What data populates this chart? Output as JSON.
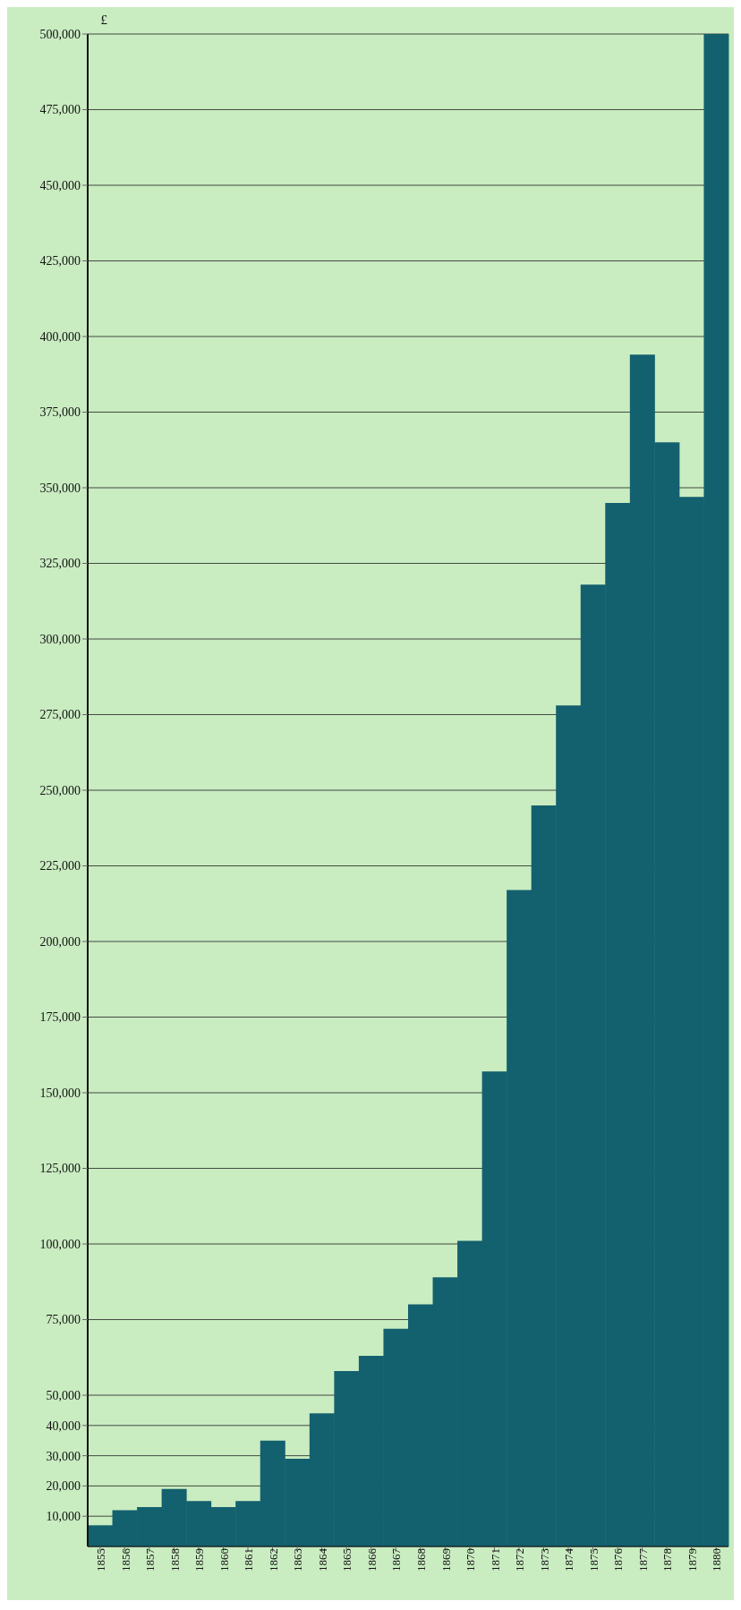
{
  "chart_data": {
    "type": "bar",
    "ylabel": "£",
    "categories": [
      "1855",
      "1856",
      "1857",
      "1858",
      "1859",
      "1860",
      "1861",
      "1862",
      "1863",
      "1864",
      "1865",
      "1866",
      "1867",
      "1868",
      "1869",
      "1870",
      "1871",
      "1872",
      "1873",
      "1874",
      "1875",
      "1876",
      "1877",
      "1878",
      "1879",
      "1880"
    ],
    "values": [
      7000,
      12000,
      13000,
      19000,
      15000,
      13000,
      15000,
      35000,
      29000,
      44000,
      58000,
      63000,
      72000,
      80000,
      89000,
      101000,
      157000,
      217000,
      245000,
      278000,
      318000,
      345000,
      394000,
      365000,
      347000,
      500000
    ],
    "color": "#13606e",
    "ylim": [
      0,
      500000
    ],
    "yticks": [
      {
        "value": 10000,
        "label": "10,000"
      },
      {
        "value": 20000,
        "label": "20,000"
      },
      {
        "value": 30000,
        "label": "30,000"
      },
      {
        "value": 40000,
        "label": "40,000"
      },
      {
        "value": 50000,
        "label": "50,000"
      },
      {
        "value": 75000,
        "label": "75,000"
      },
      {
        "value": 100000,
        "label": "100,000"
      },
      {
        "value": 125000,
        "label": "125,000"
      },
      {
        "value": 150000,
        "label": "150,000"
      },
      {
        "value": 175000,
        "label": "175,000"
      },
      {
        "value": 200000,
        "label": "200,000"
      },
      {
        "value": 225000,
        "label": "225,000"
      },
      {
        "value": 250000,
        "label": "250,000"
      },
      {
        "value": 275000,
        "label": "275,000"
      },
      {
        "value": 300000,
        "label": "300,000"
      },
      {
        "value": 325000,
        "label": "325,000"
      },
      {
        "value": 350000,
        "label": "350,000"
      },
      {
        "value": 375000,
        "label": "375,000"
      },
      {
        "value": 400000,
        "label": "400,000"
      },
      {
        "value": 425000,
        "label": "425,000"
      },
      {
        "value": 450000,
        "label": "450,000"
      },
      {
        "value": 475000,
        "label": "475,000"
      },
      {
        "value": 500000,
        "label": "500,000"
      }
    ],
    "grid": "y"
  }
}
